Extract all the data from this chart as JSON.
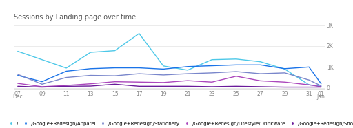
{
  "title": "Sessions by Landing page over time",
  "yticks": [
    0,
    1000,
    2000,
    3000
  ],
  "ytick_labels": [
    "0",
    "1K",
    "2K",
    "3K"
  ],
  "ylim": [
    -80,
    3100
  ],
  "xlim": [
    -0.3,
    25.3
  ],
  "x_ticks": [
    0,
    2,
    4,
    6,
    8,
    10,
    12,
    14,
    16,
    18,
    20,
    22,
    24,
    25
  ],
  "x_tick_labels": [
    "07",
    "09",
    "11",
    "13",
    "15",
    "17",
    "19",
    "21",
    "23",
    "25",
    "27",
    "29",
    "31",
    "01"
  ],
  "dec_x": 0,
  "jan_x": 25,
  "series": [
    {
      "label": "/",
      "color": "#4dc8e8",
      "linewidth": 1.0,
      "data_x": [
        0,
        2,
        4,
        6,
        8,
        10,
        12,
        14,
        16,
        18,
        20,
        22,
        24,
        25
      ],
      "data_y": [
        1750,
        1350,
        950,
        1700,
        1780,
        2600,
        1050,
        850,
        1350,
        1380,
        1250,
        900,
        150,
        80
      ]
    },
    {
      "label": "/Google+Redesign/Apparel",
      "color": "#1a73e8",
      "linewidth": 1.0,
      "data_x": [
        0,
        2,
        4,
        6,
        8,
        10,
        12,
        14,
        16,
        18,
        20,
        22,
        24,
        25
      ],
      "data_y": [
        600,
        300,
        800,
        920,
        960,
        960,
        900,
        1020,
        1060,
        1100,
        1100,
        920,
        1000,
        200
      ]
    },
    {
      "label": "/Google+Redesign/Stationery",
      "color": "#7986cb",
      "linewidth": 1.0,
      "data_x": [
        0,
        2,
        4,
        6,
        8,
        10,
        12,
        14,
        16,
        18,
        20,
        22,
        24,
        25
      ],
      "data_y": [
        650,
        180,
        500,
        600,
        580,
        680,
        620,
        680,
        720,
        780,
        680,
        720,
        380,
        100
      ]
    },
    {
      "label": "/Google+Redesign/Lifestyle/Drinkware",
      "color": "#ab47bc",
      "linewidth": 1.0,
      "data_x": [
        0,
        2,
        4,
        6,
        8,
        10,
        12,
        14,
        16,
        18,
        20,
        22,
        24,
        25
      ],
      "data_y": [
        220,
        60,
        120,
        200,
        300,
        280,
        260,
        350,
        280,
        560,
        340,
        280,
        150,
        60
      ]
    },
    {
      "label": "/Google+Redesign/Shop+by+Brand/YouTube",
      "color": "#6a1b9a",
      "linewidth": 1.0,
      "data_x": [
        0,
        2,
        4,
        6,
        8,
        10,
        12,
        14,
        16,
        18,
        20,
        22,
        24,
        25
      ],
      "data_y": [
        80,
        40,
        80,
        90,
        180,
        80,
        80,
        80,
        60,
        80,
        60,
        40,
        40,
        40
      ]
    }
  ],
  "legend_items": [
    {
      "label": "/",
      "color": "#4dc8e8"
    },
    {
      "label": "/Google+Redesign/Apparel",
      "color": "#1a73e8"
    },
    {
      "label": "/Google+Redesign/Stationery",
      "color": "#7986cb"
    },
    {
      "label": "/Google+Redesign/Lifestyle/Drinkware",
      "color": "#ab47bc"
    },
    {
      "label": "/Google+Redesign/Shop+by+Brand/YouTube",
      "color": "#6a1b9a"
    }
  ],
  "background_color": "#ffffff",
  "grid_color": "#e8e8e8",
  "title_fontsize": 7,
  "tick_fontsize": 5.5,
  "legend_fontsize": 5.0
}
